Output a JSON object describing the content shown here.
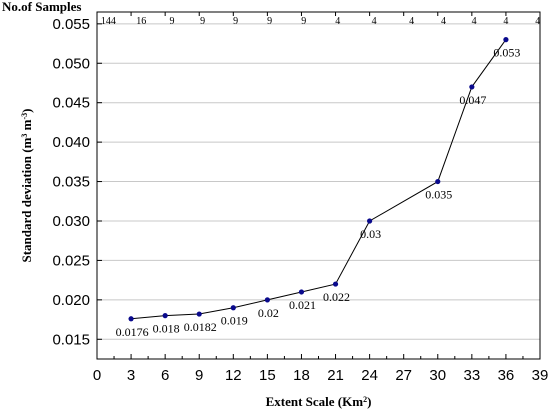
{
  "chart_data": {
    "type": "line",
    "title": "",
    "xlabel": "Extent Scale (Km",
    "xlabel_superscript": "2",
    "xlabel_suffix": ")",
    "ylabel_parts": [
      {
        "text": "Standard deviation (m",
        "sup": false
      },
      {
        "text": "3",
        "sup": true
      },
      {
        "text": " m",
        "sup": false
      },
      {
        "text": "-3",
        "sup": true
      },
      {
        "text": ")",
        "sup": false
      }
    ],
    "top_title": "No.of Samples",
    "xlim": [
      0,
      39
    ],
    "ylim": [
      0.0125,
      0.0565
    ],
    "x_ticks": [
      0,
      3,
      6,
      9,
      12,
      15,
      18,
      21,
      24,
      27,
      30,
      33,
      36,
      39
    ],
    "y_ticks": [
      0.015,
      0.02,
      0.025,
      0.03,
      0.035,
      0.04,
      0.045,
      0.05,
      0.055
    ],
    "y_tick_labels": [
      "0.015",
      "0.020",
      "0.025",
      "0.030",
      "0.035",
      "0.040",
      "0.045",
      "0.050",
      "0.055"
    ],
    "grid": "horizontal",
    "series": [
      {
        "color": "#0a0a8c",
        "line_color": "#000000",
        "points": [
          {
            "x": 3,
            "y": 0.0176,
            "label": "0.0176"
          },
          {
            "x": 6,
            "y": 0.018,
            "label": "0.018"
          },
          {
            "x": 9,
            "y": 0.0182,
            "label": "0.0182"
          },
          {
            "x": 12,
            "y": 0.019,
            "label": "0.019"
          },
          {
            "x": 15,
            "y": 0.02,
            "label": "0.02"
          },
          {
            "x": 18,
            "y": 0.021,
            "label": "0.021"
          },
          {
            "x": 21,
            "y": 0.022,
            "label": "0.022"
          },
          {
            "x": 24,
            "y": 0.03,
            "label": "0.03"
          },
          {
            "x": 30,
            "y": 0.035,
            "label": "0.035"
          },
          {
            "x": 33,
            "y": 0.047,
            "label": "0.047"
          },
          {
            "x": 36,
            "y": 0.053,
            "label": "0.053"
          }
        ]
      }
    ],
    "sample_counts": [
      {
        "x": 1,
        "label": "144"
      },
      {
        "x": 3.9,
        "label": "16"
      },
      {
        "x": 6.6,
        "label": "9"
      },
      {
        "x": 9.3,
        "label": "9"
      },
      {
        "x": 12.2,
        "label": "9"
      },
      {
        "x": 15.2,
        "label": "9"
      },
      {
        "x": 18.2,
        "label": "9"
      },
      {
        "x": 21.2,
        "label": "4"
      },
      {
        "x": 24.4,
        "label": "4"
      },
      {
        "x": 27.7,
        "label": "4"
      },
      {
        "x": 30.5,
        "label": "4"
      },
      {
        "x": 33.2,
        "label": "4"
      },
      {
        "x": 36.0,
        "label": "4"
      },
      {
        "x": 38.8,
        "label": "4"
      }
    ]
  }
}
